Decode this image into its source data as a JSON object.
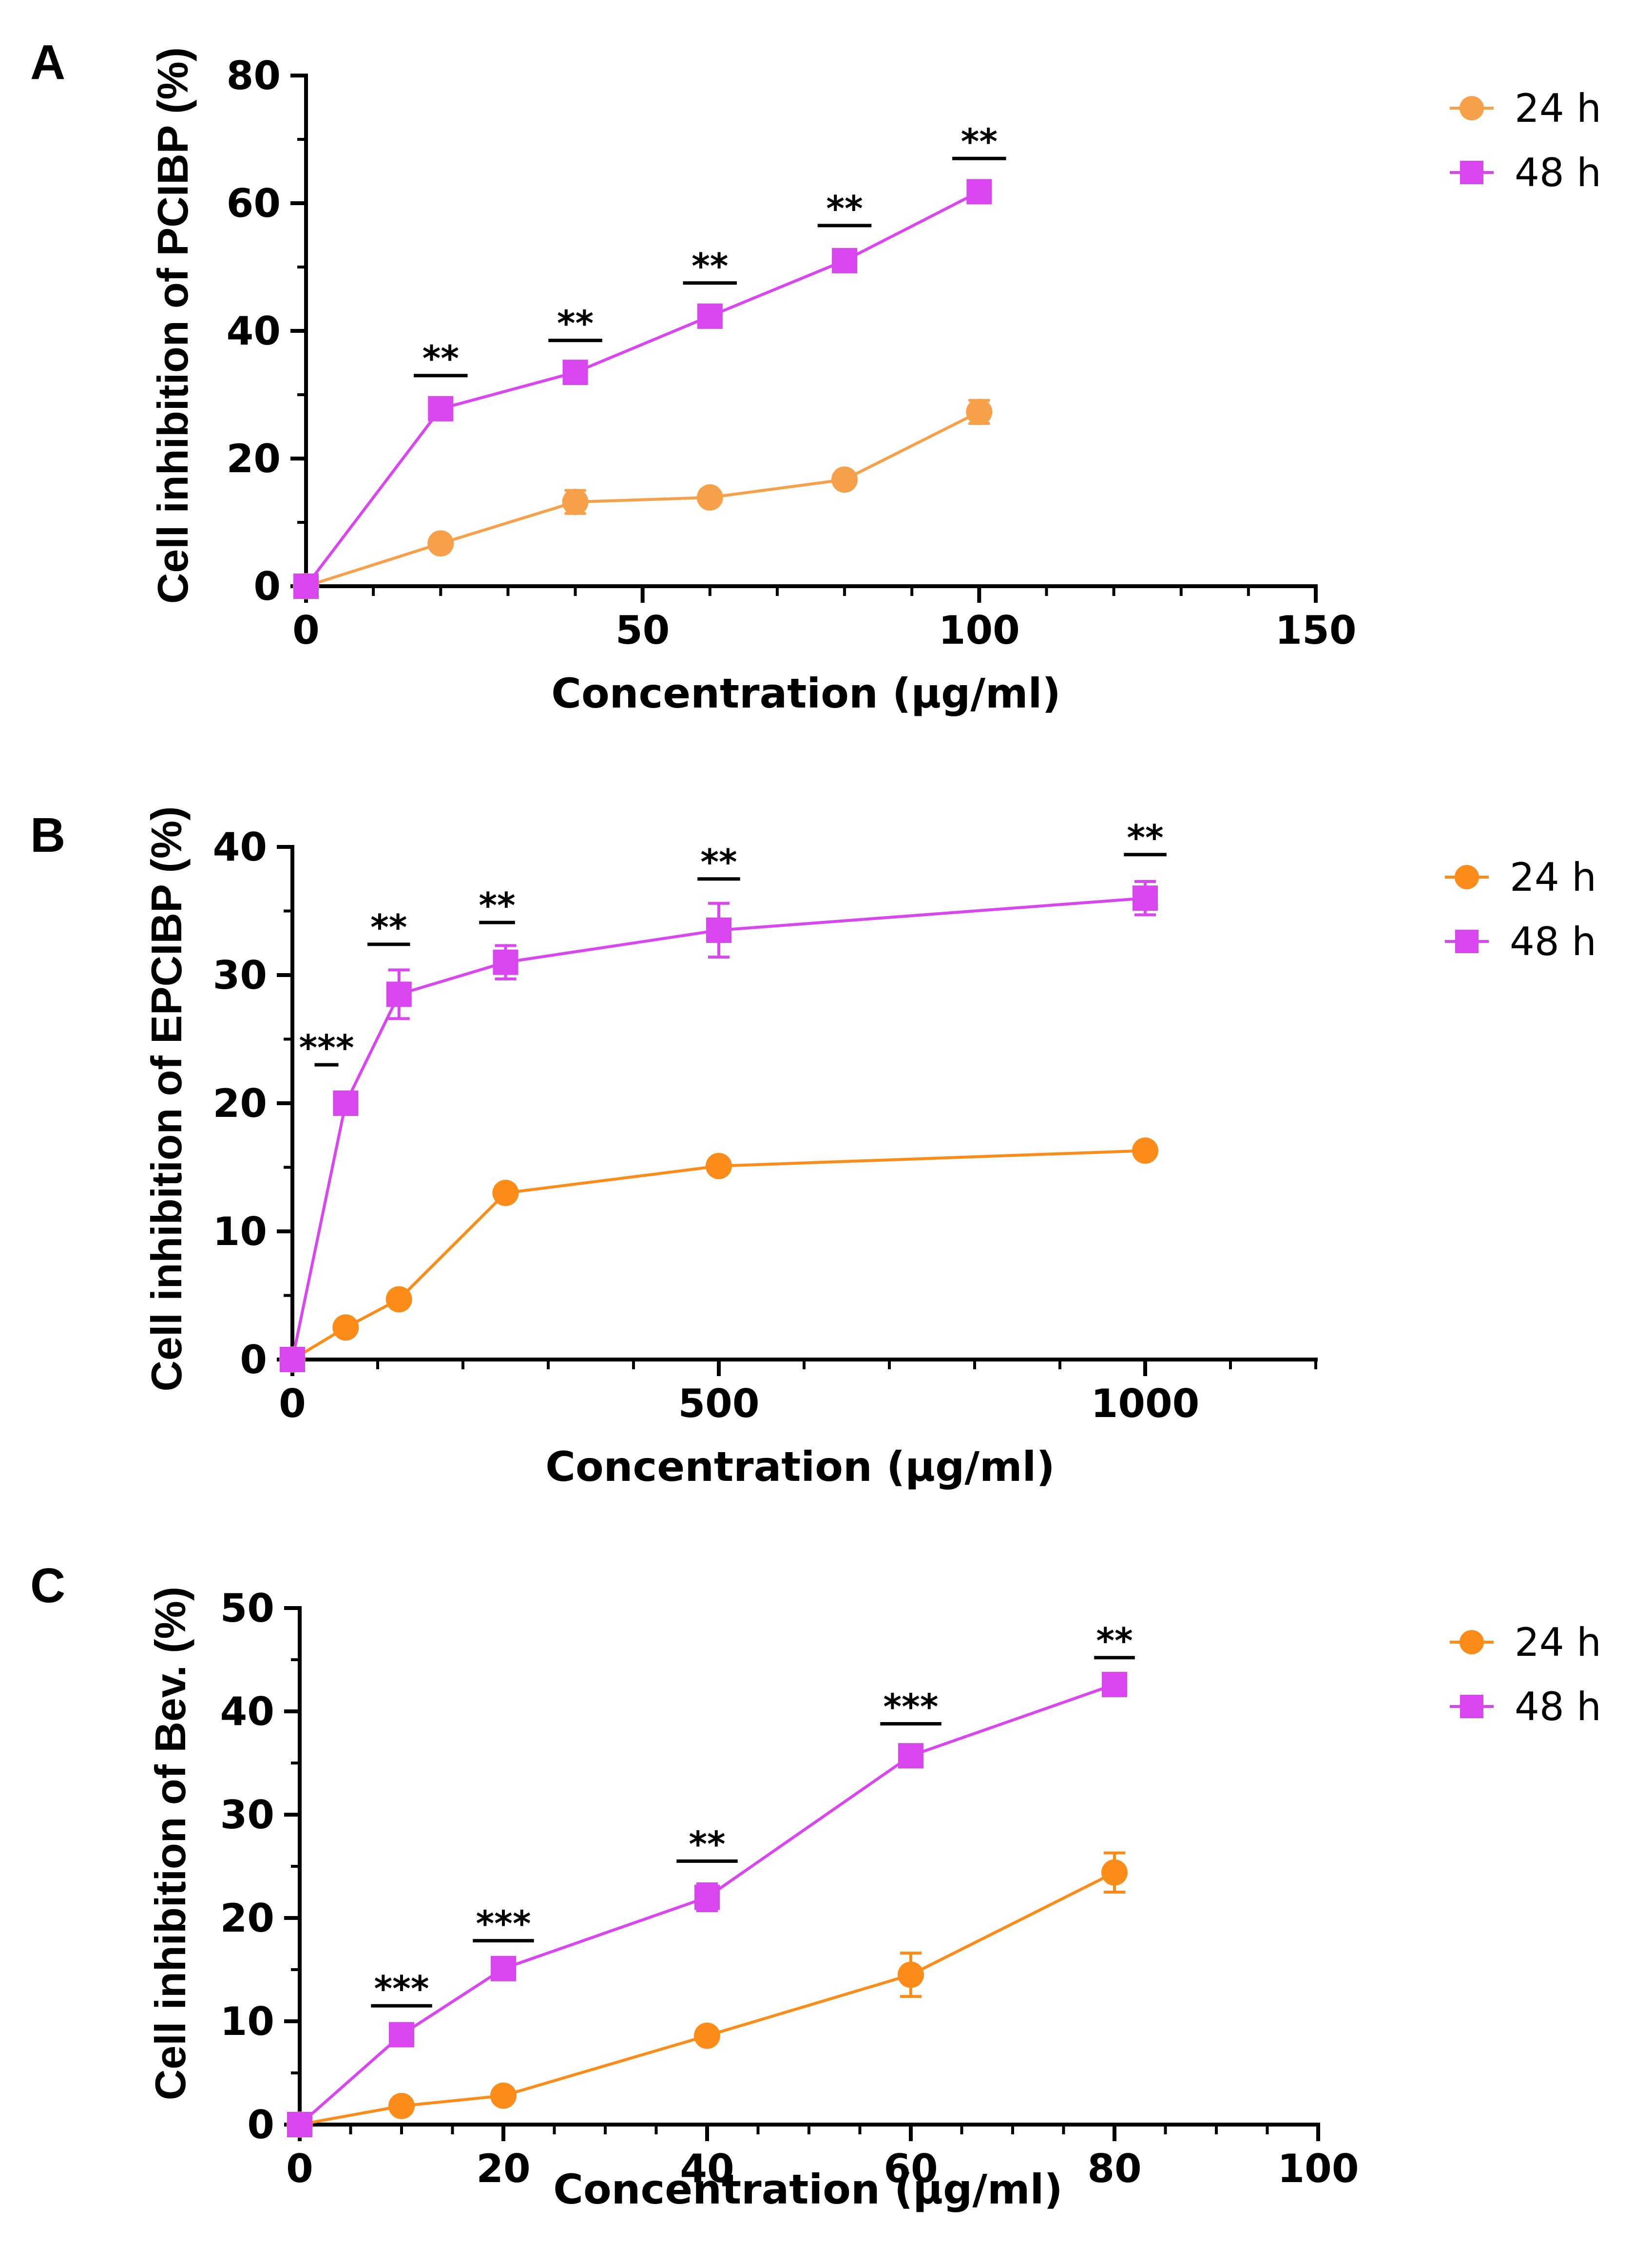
{
  "chart_data": [
    {
      "panel": "A",
      "type": "line",
      "xlabel": "Concentration (μg/ml)",
      "ylabel": "Cell inhibition of PCIBP (%)",
      "xlim": [
        0,
        150
      ],
      "ylim": [
        0,
        80
      ],
      "xticks": [
        0,
        50,
        100,
        150
      ],
      "yticks": [
        0,
        20,
        40,
        60,
        80
      ],
      "xminor": 10,
      "series": [
        {
          "name": "24 h",
          "color": "#F7A04A",
          "marker": "circle",
          "x": [
            0,
            20,
            40,
            60,
            80,
            100
          ],
          "y": [
            0,
            6.7,
            13.2,
            13.9,
            16.7,
            27.3
          ],
          "err": [
            0,
            0.5,
            1.8,
            0.6,
            0.6,
            1.8
          ]
        },
        {
          "name": "48 h",
          "color": "#D946EF",
          "marker": "square",
          "x": [
            0,
            20,
            40,
            60,
            80,
            100
          ],
          "y": [
            0,
            27.8,
            33.5,
            42.3,
            51.0,
            61.8
          ],
          "err": [
            0,
            0.5,
            1.5,
            1.0,
            0.6,
            0.6
          ]
        }
      ],
      "significance": [
        {
          "x": 20,
          "y": 33,
          "label": "**",
          "w": 8
        },
        {
          "x": 40,
          "y": 38.5,
          "label": "**",
          "w": 8
        },
        {
          "x": 60,
          "y": 47.5,
          "label": "**",
          "w": 8
        },
        {
          "x": 80,
          "y": 56.5,
          "label": "**",
          "w": 8
        },
        {
          "x": 100,
          "y": 67,
          "label": "**",
          "w": 8
        }
      ]
    },
    {
      "panel": "B",
      "type": "line",
      "xlabel": "Concentration (μg/ml)",
      "ylabel": "Cell inhibition of EPCIBP (%)",
      "xlim": [
        0,
        1200
      ],
      "ylim": [
        0,
        40
      ],
      "xticks": [
        0,
        500,
        1000
      ],
      "yticks": [
        0,
        10,
        20,
        30,
        40
      ],
      "xminor": 100,
      "series": [
        {
          "name": "24 h",
          "color": "#FB8C1A",
          "marker": "circle",
          "x": [
            0,
            62.5,
            125,
            250,
            500,
            1000
          ],
          "y": [
            0,
            2.5,
            4.7,
            13.0,
            15.1,
            16.3
          ],
          "err": [
            0,
            0.3,
            0.3,
            0.3,
            0.3,
            0.3
          ]
        },
        {
          "name": "48 h",
          "color": "#D946EF",
          "marker": "square",
          "x": [
            0,
            62.5,
            125,
            250,
            500,
            1000
          ],
          "y": [
            0,
            20.0,
            28.5,
            31.0,
            33.5,
            36.0
          ],
          "err": [
            0,
            0.3,
            1.9,
            1.3,
            2.1,
            1.3
          ]
        }
      ],
      "significance": [
        {
          "x": 40,
          "y": 23,
          "label": "***",
          "w": 28
        },
        {
          "x": 113,
          "y": 32.4,
          "label": "**",
          "w": 50
        },
        {
          "x": 240,
          "y": 34.1,
          "label": "**",
          "w": 42
        },
        {
          "x": 500,
          "y": 37.5,
          "label": "**",
          "w": 50
        },
        {
          "x": 1000,
          "y": 39.4,
          "label": "**",
          "w": 50
        }
      ]
    },
    {
      "panel": "C",
      "type": "line",
      "xlabel": "Concentration (μg/ml)",
      "ylabel": "Cell inhibition of Bev. (%)",
      "xlim": [
        0,
        100
      ],
      "ylim": [
        0,
        50
      ],
      "xticks": [
        0,
        20,
        40,
        60,
        80,
        100
      ],
      "yticks": [
        0,
        10,
        20,
        30,
        40,
        50
      ],
      "xminor": 5,
      "series": [
        {
          "name": "24 h",
          "color": "#FB8C1A",
          "marker": "circle",
          "x": [
            0,
            10,
            20,
            40,
            60,
            80
          ],
          "y": [
            0,
            1.8,
            2.8,
            8.6,
            14.5,
            24.4
          ],
          "err": [
            0,
            0.3,
            0.3,
            0.3,
            2.1,
            1.9
          ]
        },
        {
          "name": "48 h",
          "color": "#D946EF",
          "marker": "square",
          "x": [
            0,
            10,
            20,
            40,
            60,
            80
          ],
          "y": [
            0,
            8.7,
            15.1,
            22.0,
            35.7,
            42.6
          ],
          "err": [
            0,
            0.4,
            0.4,
            1.3,
            0.4,
            0.4
          ]
        }
      ],
      "significance": [
        {
          "x": 10,
          "y": 11.5,
          "label": "***",
          "w": 6
        },
        {
          "x": 20,
          "y": 17.8,
          "label": "***",
          "w": 6
        },
        {
          "x": 40,
          "y": 25.5,
          "label": "**",
          "w": 6
        },
        {
          "x": 60,
          "y": 38.8,
          "label": "***",
          "w": 6
        },
        {
          "x": 80,
          "y": 45.2,
          "label": "**",
          "w": 4
        }
      ]
    }
  ]
}
